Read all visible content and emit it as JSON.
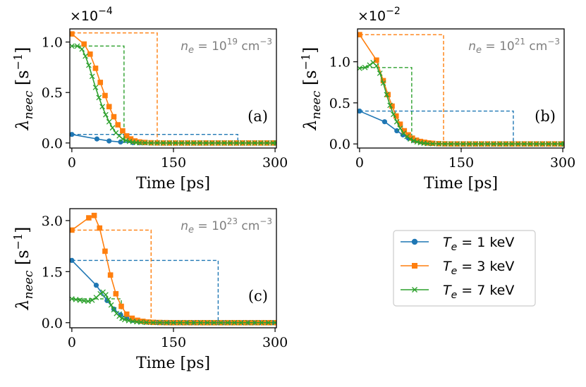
{
  "figure": {
    "legend": [
      {
        "series": "T1",
        "prefix": "T",
        "sub": "e",
        "label": " = 1 keV",
        "color": "#1f77b4",
        "marker": "circle"
      },
      {
        "series": "T3",
        "prefix": "T",
        "sub": "e",
        "label": " = 3 keV",
        "color": "#ff7f0e",
        "marker": "square"
      },
      {
        "series": "T7",
        "prefix": "T",
        "sub": "e",
        "label": " = 7 keV",
        "color": "#2ca02c",
        "marker": "x"
      }
    ]
  },
  "chart_data": [
    {
      "type": "line",
      "panel": "a",
      "panel_label": "(a)",
      "title": "",
      "xlabel": "Time [ps]",
      "ylabel": {
        "symbol": "λ",
        "sub": "neec",
        "unit": " [s",
        "sup": "−1",
        "close": "]"
      },
      "multiplier": {
        "base": "×10",
        "exp": "−4"
      },
      "density": {
        "n": "n",
        "sub": "e",
        "eq": " = 10",
        "exp": "19",
        "unit": " cm",
        "uexp": "−3"
      },
      "xlim": [
        -3,
        302
      ],
      "ylim": [
        -0.05,
        1.13
      ],
      "xticks": [
        0,
        150,
        300
      ],
      "xtick_labels": [
        "0",
        "150",
        "300"
      ],
      "yticks": [
        0.0,
        0.5,
        1.0
      ],
      "ytick_labels": [
        "0.0",
        "0.5",
        "1.0"
      ],
      "series": [
        {
          "name": "T1",
          "color": "#1f77b4",
          "marker": "circle",
          "x": [
            0,
            37,
            55,
            72,
            90,
            100,
            108,
            117,
            126,
            135,
            144,
            153,
            162,
            171,
            180,
            189,
            198,
            207,
            216,
            225,
            234,
            243,
            252,
            261,
            270,
            279,
            288,
            297,
            302
          ],
          "y": [
            0.085,
            0.04,
            0.02,
            0.01,
            0.004,
            0.002,
            0.001,
            0.001,
            0.001,
            0,
            0,
            0,
            0,
            0,
            0,
            0,
            0,
            0,
            0,
            0,
            0,
            0,
            0,
            0,
            0,
            0,
            0,
            0,
            0
          ]
        },
        {
          "name": "T3",
          "color": "#ff7f0e",
          "marker": "square",
          "x": [
            0,
            18,
            27,
            35,
            42,
            49,
            55,
            62,
            68,
            75,
            81,
            87,
            93,
            100,
            108,
            117,
            126,
            135,
            144,
            153,
            162,
            171,
            180,
            189,
            198,
            207,
            216,
            225,
            234,
            243,
            252,
            261,
            270,
            279,
            288,
            297,
            302
          ],
          "y": [
            1.08,
            0.98,
            0.88,
            0.74,
            0.6,
            0.47,
            0.36,
            0.26,
            0.18,
            0.12,
            0.07,
            0.04,
            0.02,
            0.01,
            0.005,
            0.002,
            0.001,
            0,
            0,
            0,
            0,
            0,
            0,
            0,
            0,
            0,
            0,
            0,
            0,
            0,
            0,
            0,
            0,
            0,
            0,
            0,
            0
          ]
        },
        {
          "name": "T7",
          "color": "#2ca02c",
          "marker": "x",
          "x": [
            0,
            8,
            15,
            20,
            25,
            30,
            35,
            40,
            45,
            50,
            55,
            60,
            65,
            70,
            75,
            80,
            85,
            90,
            95,
            100,
            108,
            117,
            126,
            135,
            144,
            153,
            162,
            171,
            180,
            189,
            198,
            207,
            216,
            225,
            234,
            243,
            252,
            261,
            270,
            279,
            288,
            297,
            302
          ],
          "y": [
            0.96,
            0.96,
            0.93,
            0.86,
            0.77,
            0.66,
            0.55,
            0.45,
            0.36,
            0.28,
            0.21,
            0.15,
            0.1,
            0.07,
            0.04,
            0.025,
            0.015,
            0.008,
            0.004,
            0.002,
            0.001,
            0,
            0,
            0,
            0,
            0,
            0,
            0,
            0,
            0,
            0,
            0,
            0,
            0,
            0,
            0,
            0,
            0,
            0,
            0,
            0,
            0,
            0
          ]
        }
      ],
      "dashed_steps": [
        {
          "series": "T1",
          "color": "#1f77b4",
          "level": 0.085,
          "t_end": 245
        },
        {
          "series": "T3",
          "color": "#ff7f0e",
          "level": 1.09,
          "t_end": 126
        },
        {
          "series": "T7",
          "color": "#2ca02c",
          "level": 0.96,
          "t_end": 77
        }
      ]
    },
    {
      "type": "line",
      "panel": "b",
      "panel_label": "(b)",
      "title": "",
      "xlabel": "Time [ps]",
      "ylabel": {
        "symbol": "λ",
        "sub": "neec",
        "unit": " [s",
        "sup": "−1",
        "close": "]"
      },
      "multiplier": {
        "base": "×10",
        "exp": "−2"
      },
      "density": {
        "n": "n",
        "sub": "e",
        "eq": " = 10",
        "exp": "21",
        "unit": " cm",
        "uexp": "−3"
      },
      "xlim": [
        -3,
        302
      ],
      "ylim": [
        -0.05,
        1.4
      ],
      "xticks": [
        0,
        150,
        300
      ],
      "xtick_labels": [
        "0",
        "150",
        "300"
      ],
      "yticks": [
        0.0,
        0.5,
        1.0
      ],
      "ytick_labels": [
        "0.0",
        "0.5",
        "1.0"
      ],
      "series": [
        {
          "name": "T1",
          "color": "#1f77b4",
          "marker": "circle",
          "x": [
            0,
            37,
            55,
            64,
            72,
            81,
            90,
            99,
            108,
            117,
            126,
            135,
            144,
            153,
            162,
            171,
            180,
            189,
            198,
            207,
            216,
            225,
            234,
            243,
            252,
            261,
            270,
            279,
            288,
            297,
            302
          ],
          "y": [
            0.4,
            0.27,
            0.16,
            0.11,
            0.07,
            0.04,
            0.025,
            0.014,
            0.008,
            0.004,
            0.002,
            0.001,
            0,
            0,
            0,
            0,
            0,
            0,
            0,
            0,
            0,
            0,
            0,
            0,
            0,
            0,
            0,
            0,
            0,
            0,
            0
          ]
        },
        {
          "name": "T3",
          "color": "#ff7f0e",
          "marker": "square",
          "x": [
            0,
            25,
            35,
            42,
            48,
            54,
            60,
            66,
            72,
            78,
            84,
            90,
            96,
            102,
            108,
            117,
            126,
            135,
            144,
            153,
            162,
            171,
            180,
            189,
            198,
            207,
            216,
            225,
            234,
            243,
            252,
            261,
            270,
            279,
            288,
            297,
            302
          ],
          "y": [
            1.33,
            1.02,
            0.77,
            0.6,
            0.46,
            0.34,
            0.24,
            0.16,
            0.11,
            0.07,
            0.045,
            0.03,
            0.02,
            0.012,
            0.007,
            0.003,
            0.001,
            0,
            0,
            0,
            0,
            0,
            0,
            0,
            0,
            0,
            0,
            0,
            0,
            0,
            0,
            0,
            0,
            0,
            0,
            0,
            0
          ]
        },
        {
          "name": "T7",
          "color": "#2ca02c",
          "marker": "x",
          "x": [
            0,
            8,
            15,
            20,
            25,
            30,
            35,
            40,
            45,
            50,
            55,
            60,
            65,
            70,
            75,
            80,
            85,
            90,
            95,
            100,
            108,
            117,
            126,
            135,
            144,
            153,
            162,
            171,
            180,
            189,
            198,
            207,
            216,
            225,
            234,
            243,
            252,
            261,
            270,
            279,
            288,
            297,
            302
          ],
          "y": [
            0.92,
            0.93,
            0.96,
            0.99,
            0.95,
            0.86,
            0.74,
            0.6,
            0.47,
            0.36,
            0.27,
            0.19,
            0.13,
            0.09,
            0.06,
            0.04,
            0.025,
            0.015,
            0.009,
            0.005,
            0.002,
            0.001,
            0,
            0,
            0,
            0,
            0,
            0,
            0,
            0,
            0,
            0,
            0,
            0,
            0,
            0,
            0,
            0,
            0,
            0,
            0,
            0,
            0
          ]
        }
      ],
      "dashed_steps": [
        {
          "series": "T1",
          "color": "#1f77b4",
          "level": 0.4,
          "t_end": 227
        },
        {
          "series": "T3",
          "color": "#ff7f0e",
          "level": 1.33,
          "t_end": 124
        },
        {
          "series": "T7",
          "color": "#2ca02c",
          "level": 0.93,
          "t_end": 77
        }
      ]
    },
    {
      "type": "line",
      "panel": "c",
      "panel_label": "(c)",
      "title": "",
      "xlabel": "Time [ps]",
      "ylabel": {
        "symbol": "λ",
        "sub": "neec",
        "unit": " [s",
        "sup": "−1",
        "close": "]"
      },
      "multiplier": null,
      "density": {
        "n": "n",
        "sub": "e",
        "eq": " = 10",
        "exp": "23",
        "unit": " cm",
        "uexp": "−3"
      },
      "xlim": [
        -3,
        302
      ],
      "ylim": [
        -0.15,
        3.35
      ],
      "xticks": [
        0,
        150,
        300
      ],
      "xtick_labels": [
        "0",
        "150",
        "300"
      ],
      "yticks": [
        0.0,
        1.5,
        3.0
      ],
      "ytick_labels": [
        "0.0",
        "1.5",
        "3.0"
      ],
      "series": [
        {
          "name": "T1",
          "color": "#1f77b4",
          "marker": "circle",
          "x": [
            0,
            36,
            52,
            62,
            72,
            81,
            90,
            99,
            108,
            117,
            126,
            135,
            144,
            153,
            162,
            171,
            180,
            189,
            198,
            207,
            216,
            225,
            234,
            243,
            252,
            261,
            270,
            279,
            288,
            297,
            302
          ],
          "y": [
            1.83,
            1.1,
            0.65,
            0.4,
            0.23,
            0.13,
            0.07,
            0.04,
            0.02,
            0.01,
            0.005,
            0.002,
            0,
            0,
            0,
            0,
            0,
            0,
            0,
            0,
            0,
            0,
            0,
            0,
            0,
            0,
            0,
            0,
            0,
            0,
            0
          ]
        },
        {
          "name": "T3",
          "color": "#ff7f0e",
          "marker": "square",
          "x": [
            0,
            25,
            33,
            41,
            49,
            57,
            65,
            73,
            81,
            89,
            97,
            105,
            113,
            121,
            130,
            139,
            148,
            157,
            166,
            175,
            184,
            193,
            202,
            211,
            220,
            229,
            238,
            247,
            256,
            265,
            274,
            283,
            292,
            302
          ],
          "y": [
            2.72,
            3.08,
            3.15,
            2.78,
            2.1,
            1.4,
            0.85,
            0.48,
            0.25,
            0.13,
            0.07,
            0.04,
            0.02,
            0.01,
            0.005,
            0.002,
            0,
            0,
            0,
            0,
            0,
            0,
            0,
            0,
            0,
            0,
            0,
            0,
            0,
            0,
            0,
            0,
            0,
            0
          ]
        },
        {
          "name": "T7",
          "color": "#2ca02c",
          "marker": "x",
          "x": [
            0,
            6,
            12,
            18,
            24,
            30,
            36,
            42,
            46,
            50,
            54,
            58,
            62,
            66,
            70,
            74,
            78,
            84,
            90,
            96,
            102,
            110,
            120,
            130,
            140,
            150,
            160,
            170,
            180,
            190,
            200,
            210,
            220,
            230,
            240,
            250,
            260,
            270,
            280,
            290,
            300
          ],
          "y": [
            0.7,
            0.68,
            0.66,
            0.64,
            0.63,
            0.66,
            0.74,
            0.85,
            0.9,
            0.82,
            0.68,
            0.52,
            0.38,
            0.27,
            0.19,
            0.13,
            0.09,
            0.06,
            0.04,
            0.025,
            0.015,
            0.008,
            0.004,
            0.002,
            0.001,
            0,
            0,
            0,
            0,
            0,
            0,
            0,
            0,
            0,
            0,
            0,
            0,
            0,
            0,
            0,
            0
          ]
        }
      ],
      "dashed_steps": [
        {
          "series": "T1",
          "color": "#1f77b4",
          "level": 1.83,
          "t_end": 216
        },
        {
          "series": "T3",
          "color": "#ff7f0e",
          "level": 2.72,
          "t_end": 117
        },
        {
          "series": "T7",
          "color": "#2ca02c",
          "level": 0.7,
          "t_end": 73
        }
      ]
    }
  ]
}
